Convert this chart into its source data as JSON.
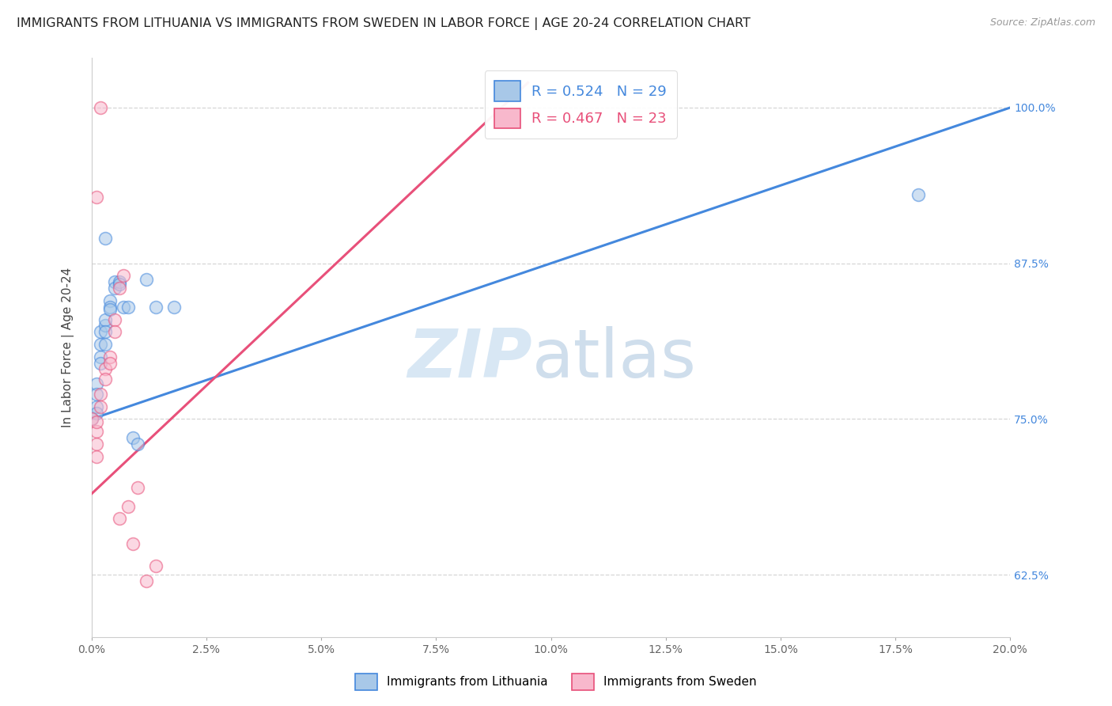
{
  "title": "IMMIGRANTS FROM LITHUANIA VS IMMIGRANTS FROM SWEDEN IN LABOR FORCE | AGE 20-24 CORRELATION CHART",
  "source": "Source: ZipAtlas.com",
  "ylabel": "In Labor Force | Age 20-24",
  "yticks": [
    0.625,
    0.75,
    0.875,
    1.0
  ],
  "ytick_labels": [
    "62.5%",
    "75.0%",
    "87.5%",
    "100.0%"
  ],
  "xmin": 0.0,
  "xmax": 0.2,
  "ymin": 0.575,
  "ymax": 1.04,
  "legend_r1": "R = 0.524",
  "legend_n1": "N = 29",
  "legend_r2": "R = 0.467",
  "legend_n2": "N = 23",
  "color_lithuania": "#a8c8e8",
  "color_sweden": "#f8b8cc",
  "color_line_lithuania": "#4488dd",
  "color_line_sweden": "#e8507a",
  "watermark_zip": "ZIP",
  "watermark_atlas": "atlas",
  "lith_x": [
    0.0,
    0.001,
    0.001,
    0.001,
    0.001,
    0.002,
    0.002,
    0.002,
    0.002,
    0.003,
    0.003,
    0.003,
    0.003,
    0.004,
    0.004,
    0.004,
    0.005,
    0.005,
    0.006,
    0.006,
    0.007,
    0.008,
    0.009,
    0.01,
    0.012,
    0.014,
    0.018,
    0.18,
    0.003
  ],
  "lith_y": [
    0.75,
    0.76,
    0.755,
    0.778,
    0.77,
    0.8,
    0.795,
    0.81,
    0.82,
    0.825,
    0.83,
    0.82,
    0.81,
    0.845,
    0.84,
    0.838,
    0.86,
    0.855,
    0.86,
    0.858,
    0.84,
    0.84,
    0.735,
    0.73,
    0.862,
    0.84,
    0.84,
    0.93,
    0.895
  ],
  "swe_x": [
    0.0,
    0.001,
    0.001,
    0.001,
    0.001,
    0.002,
    0.002,
    0.003,
    0.003,
    0.004,
    0.004,
    0.005,
    0.005,
    0.006,
    0.007,
    0.008,
    0.009,
    0.01,
    0.012,
    0.002,
    0.001,
    0.014,
    0.006
  ],
  "swe_y": [
    0.75,
    0.74,
    0.748,
    0.73,
    0.72,
    0.77,
    0.76,
    0.79,
    0.782,
    0.8,
    0.795,
    0.83,
    0.82,
    0.855,
    0.865,
    0.68,
    0.65,
    0.695,
    0.62,
    1.0,
    0.928,
    0.632,
    0.67
  ],
  "blue_line_x0": 0.0,
  "blue_line_y0": 0.75,
  "blue_line_x1": 0.2,
  "blue_line_y1": 1.0,
  "pink_line_x0": 0.0,
  "pink_line_y0": 0.69,
  "pink_line_x1": 0.095,
  "pink_line_y1": 1.02
}
